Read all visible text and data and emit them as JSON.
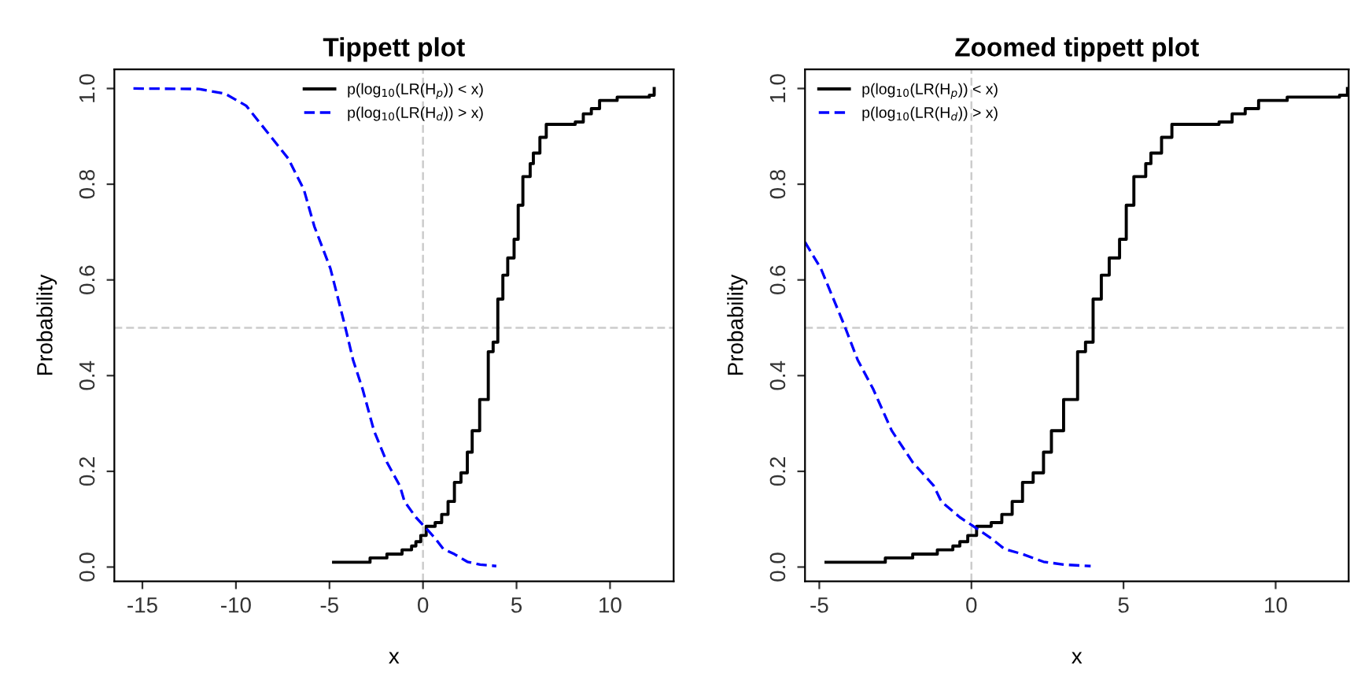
{
  "chart_data": [
    {
      "type": "step",
      "title": "Tippett plot",
      "xlabel": "x",
      "ylabel": "Probability",
      "xlim": [
        -16.5,
        13.4
      ],
      "xticks": [
        -15,
        -10,
        -5,
        0,
        5,
        10
      ],
      "ylim": [
        -0.03,
        1.04
      ],
      "yticks": [
        {
          "value": 0,
          "label": "0.0"
        },
        {
          "value": 0.2,
          "label": "0.2"
        },
        {
          "value": 0.4,
          "label": "0.4"
        },
        {
          "value": 0.6,
          "label": "0.6"
        },
        {
          "value": 0.8,
          "label": "0.8"
        },
        {
          "value": 1,
          "label": "1.0"
        }
      ],
      "legend": "top",
      "grid": false,
      "ref_lines": [
        {
          "axis": "x",
          "value": 0,
          "label": null,
          "color": "#cccccc",
          "line_style": "dashed"
        },
        {
          "axis": "y",
          "value": 0.5,
          "label": null,
          "color": "#cccccc",
          "line_style": "dashed"
        }
      ],
      "series": [
        {
          "name": "p(log$_{10}$(LR(H$_{p}$)) < x)",
          "color": "#000000",
          "line_style": "solid",
          "x": [
            -4.78,
            -2.83,
            -1.93,
            -1.12,
            -0.61,
            -0.38,
            -0.12,
            0.17,
            0.65,
            1.0,
            1.34,
            1.68,
            2.03,
            2.37,
            2.63,
            3.03,
            3.49,
            3.75,
            4.0,
            4.27,
            4.53,
            4.87,
            5.09,
            5.34,
            5.73,
            5.9,
            6.25,
            6.59,
            8.14,
            8.57,
            9.0,
            9.44,
            10.38,
            12.1,
            12.36
          ],
          "values": [
            0.01,
            0.019,
            0.027,
            0.036,
            0.044,
            0.053,
            0.066,
            0.085,
            0.093,
            0.11,
            0.137,
            0.177,
            0.197,
            0.24,
            0.285,
            0.35,
            0.45,
            0.47,
            0.56,
            0.61,
            0.646,
            0.685,
            0.756,
            0.816,
            0.843,
            0.865,
            0.898,
            0.925,
            0.93,
            0.947,
            0.958,
            0.975,
            0.982,
            0.986,
            1.0
          ]
        },
        {
          "name": "p(log$_{10}$(LR(H$_{d}$)) > x)",
          "color": "#0000ff",
          "type": "line",
          "line_style": "dashed",
          "x": [
            -15.48,
            -11.97,
            -10.57,
            -9.45,
            -8.33,
            -7.21,
            -6.37,
            -5.81,
            -4.95,
            -4.17,
            -3.74,
            -3.23,
            -2.62,
            -1.93,
            -1.24,
            -0.99,
            -0.38,
            0.14,
            0.65,
            1.08,
            1.68,
            2.37,
            3.06,
            3.92
          ],
          "values": [
            1.0,
            0.999,
            0.989,
            0.964,
            0.909,
            0.854,
            0.789,
            0.712,
            0.624,
            0.504,
            0.433,
            0.372,
            0.285,
            0.219,
            0.17,
            0.137,
            0.104,
            0.082,
            0.06,
            0.038,
            0.027,
            0.011,
            0.005,
            0.002
          ]
        }
      ]
    },
    {
      "type": "step",
      "title": "Zoomed tippett plot",
      "xlabel": "x",
      "ylabel": "Probability",
      "xlim": [
        -5.47,
        12.4
      ],
      "xticks": [
        -5,
        0,
        5,
        10
      ],
      "ylim": [
        -0.03,
        1.04
      ],
      "yticks": [
        {
          "value": 0,
          "label": "0.0"
        },
        {
          "value": 0.2,
          "label": "0.2"
        },
        {
          "value": 0.4,
          "label": "0.4"
        },
        {
          "value": 0.6,
          "label": "0.6"
        },
        {
          "value": 0.8,
          "label": "0.8"
        },
        {
          "value": 1,
          "label": "1.0"
        }
      ],
      "legend": "top left",
      "grid": false,
      "ref_lines": [
        {
          "axis": "x",
          "value": 0,
          "label": null,
          "color": "#cccccc",
          "line_style": "dashed"
        },
        {
          "axis": "y",
          "value": 0.5,
          "label": null,
          "color": "#cccccc",
          "line_style": "dashed"
        }
      ],
      "series": [
        {
          "name": "p(log$_{10}$(LR(H$_{p}$)) < x)",
          "color": "#000000",
          "line_style": "solid",
          "x": [
            -4.78,
            -2.83,
            -1.93,
            -1.12,
            -0.61,
            -0.38,
            -0.12,
            0.17,
            0.65,
            1.0,
            1.34,
            1.68,
            2.03,
            2.37,
            2.63,
            3.03,
            3.49,
            3.75,
            4.0,
            4.27,
            4.53,
            4.87,
            5.09,
            5.34,
            5.73,
            5.9,
            6.25,
            6.59,
            8.14,
            8.57,
            9.0,
            9.44,
            10.38,
            12.1,
            12.36
          ],
          "values": [
            0.01,
            0.019,
            0.027,
            0.036,
            0.044,
            0.053,
            0.066,
            0.085,
            0.093,
            0.11,
            0.137,
            0.177,
            0.197,
            0.24,
            0.285,
            0.35,
            0.45,
            0.47,
            0.56,
            0.61,
            0.646,
            0.685,
            0.756,
            0.816,
            0.843,
            0.865,
            0.898,
            0.925,
            0.93,
            0.947,
            0.958,
            0.975,
            0.982,
            0.986,
            1.0
          ]
        },
        {
          "name": "p(log$_{10}$(LR(H$_{d}$)) > x)",
          "color": "#0000ff",
          "type": "line",
          "line_style": "dashed",
          "x": [
            -5.47,
            -4.95,
            -4.17,
            -3.74,
            -3.23,
            -2.62,
            -1.93,
            -1.24,
            -0.99,
            -0.38,
            0.14,
            0.65,
            1.08,
            1.68,
            2.37,
            3.06,
            3.92
          ],
          "values": [
            0.679,
            0.624,
            0.504,
            0.433,
            0.372,
            0.285,
            0.219,
            0.17,
            0.137,
            0.104,
            0.082,
            0.06,
            0.038,
            0.027,
            0.011,
            0.005,
            0.002
          ]
        }
      ]
    }
  ]
}
